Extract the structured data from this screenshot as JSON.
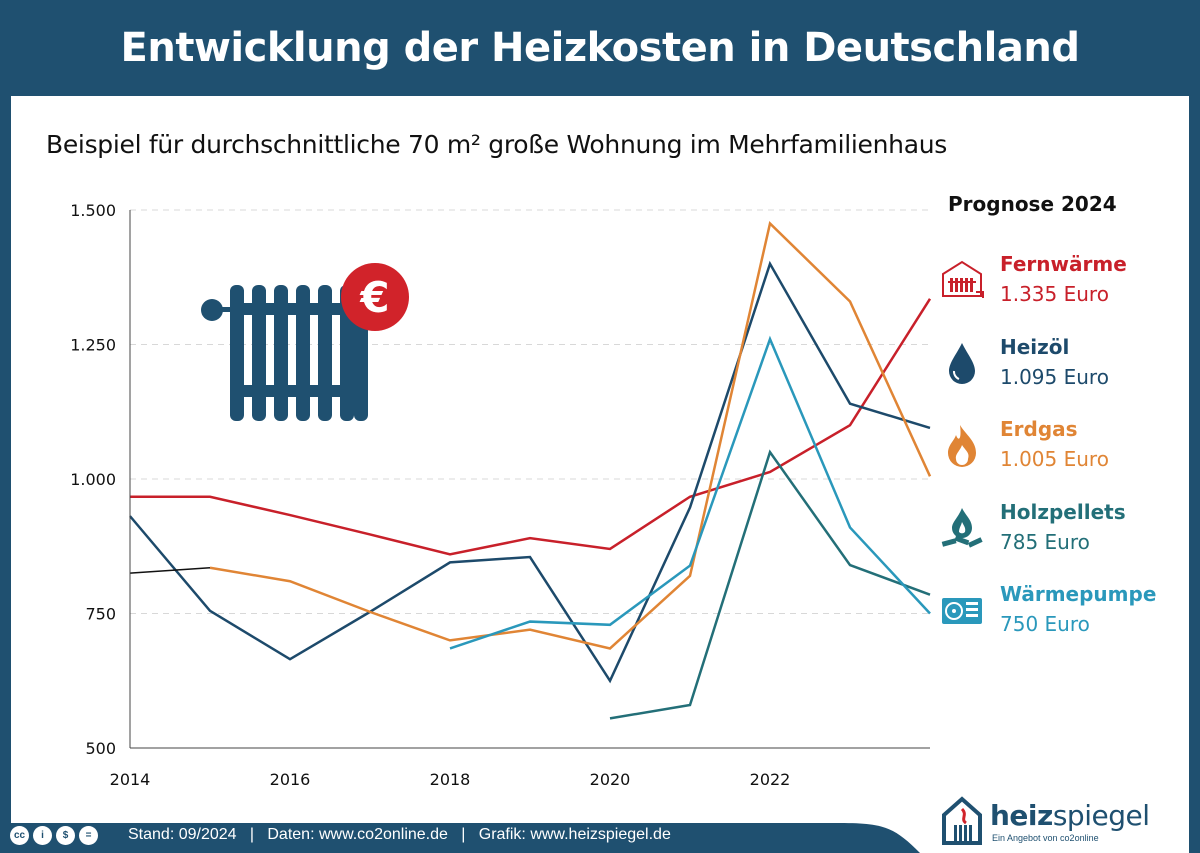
{
  "title": "Entwicklung der Heizkosten in Deutschland",
  "subtitle": "Beispiel für durchschnittliche 70 m² große Wohnung im Mehrfamilienhaus",
  "legend": {
    "title": "Prognose 2024",
    "items": [
      {
        "name": "Fernwärme",
        "value": "1.335 Euro",
        "color": "#c8202a",
        "icon": "district-heating-icon"
      },
      {
        "name": "Heizöl",
        "value": "1.095 Euro",
        "color": "#1d4a6b",
        "icon": "oil-drop-icon"
      },
      {
        "name": "Erdgas",
        "value": "1.005 Euro",
        "color": "#e08535",
        "icon": "flame-icon"
      },
      {
        "name": "Holzpellets",
        "value": "785 Euro",
        "color": "#236f78",
        "icon": "wood-fire-icon"
      },
      {
        "name": "Wärmepumpe",
        "value": "750 Euro",
        "color": "#2a98bb",
        "icon": "heat-pump-icon"
      }
    ]
  },
  "chart_data": {
    "type": "line",
    "title": "Entwicklung der Heizkosten in Deutschland",
    "subtitle": "Beispiel für durchschnittliche 70 m² große Wohnung im Mehrfamilienhaus",
    "xlabel": "",
    "ylabel": "",
    "x": [
      2014,
      2015,
      2016,
      2017,
      2018,
      2019,
      2020,
      2021,
      2022,
      2023,
      2024
    ],
    "xticks": [
      "2014",
      "2016",
      "2018",
      "2020",
      "2022"
    ],
    "xtick_values": [
      2014,
      2016,
      2018,
      2020,
      2022
    ],
    "ylim": [
      500,
      1500
    ],
    "yticks": [
      "500",
      "750",
      "1.000",
      "1.250",
      "1.500"
    ],
    "ytick_values": [
      500,
      750,
      1000,
      1250,
      1500
    ],
    "grid": "horizontal dashed",
    "legend_position": "right",
    "series": [
      {
        "name": "Fernwärme",
        "color": "#c8202a",
        "values": [
          967,
          967,
          933,
          897,
          860,
          890,
          870,
          967,
          1013,
          1100,
          1335
        ]
      },
      {
        "name": "Heizöl",
        "color": "#1d4a6b",
        "values": [
          931,
          755,
          665,
          753,
          845,
          855,
          625,
          947,
          1400,
          1140,
          1095
        ]
      },
      {
        "name": "Erdgas",
        "color": "#e08535",
        "values": [
          null,
          835,
          810,
          753,
          700,
          720,
          685,
          820,
          1475,
          1330,
          1005
        ]
      },
      {
        "name": "Holzpellets",
        "color": "#236f78",
        "values": [
          null,
          null,
          null,
          null,
          null,
          null,
          555,
          580,
          1050,
          840,
          785
        ]
      },
      {
        "name": "Wärmepumpe",
        "color": "#2a98bb",
        "values": [
          null,
          null,
          null,
          null,
          685,
          735,
          729,
          839,
          1260,
          910,
          750
        ]
      },
      {
        "color": "#111111",
        "values": [
          825,
          835,
          null,
          null,
          null,
          null,
          null,
          null,
          null,
          null,
          null
        ]
      }
    ]
  },
  "footer": {
    "text": "Stand: 09/2024   |   Daten: www.co2online.de   |   Grafik: www.heizspiegel.de",
    "license_icons": [
      "cc",
      "by",
      "nc",
      "nd"
    ],
    "license_labels": [
      "cc",
      "i",
      "$",
      "="
    ]
  },
  "logo": {
    "brand_bold": "heiz",
    "brand_light": "spiegel",
    "tagline": "Ein Angebot von co2online"
  },
  "colors": {
    "header": "#1f5070",
    "euro_badge": "#d1232a"
  }
}
